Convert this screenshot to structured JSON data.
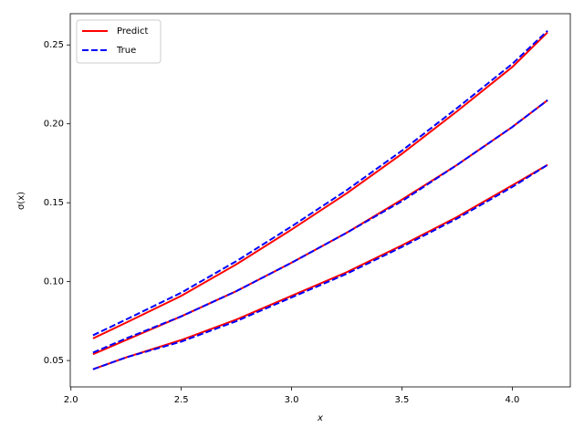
{
  "chart_data": {
    "type": "line",
    "x_label": "x",
    "y_label": "σ(x)",
    "x": [
      2.1,
      2.25,
      2.5,
      2.75,
      3.0,
      3.25,
      3.5,
      3.75,
      4.0,
      4.16
    ],
    "series": [
      {
        "name": "Predict",
        "color": "#ff0000",
        "dash": "solid",
        "curves": [
          [
            0.064,
            0.074,
            0.091,
            0.111,
            0.133,
            0.156,
            0.181,
            0.208,
            0.236,
            0.258
          ],
          [
            0.054,
            0.063,
            0.078,
            0.094,
            0.112,
            0.131,
            0.152,
            0.174,
            0.198,
            0.215
          ],
          [
            0.0445,
            0.052,
            0.063,
            0.076,
            0.091,
            0.106,
            0.123,
            0.141,
            0.161,
            0.174
          ]
        ]
      },
      {
        "name": "True",
        "color": "#0000ff",
        "dash": "dashed",
        "curves": [
          [
            0.066,
            0.076,
            0.093,
            0.113,
            0.135,
            0.158,
            0.183,
            0.21,
            0.238,
            0.259
          ],
          [
            0.055,
            0.064,
            0.078,
            0.094,
            0.112,
            0.131,
            0.151,
            0.174,
            0.198,
            0.215
          ],
          [
            0.0445,
            0.052,
            0.062,
            0.075,
            0.09,
            0.105,
            0.122,
            0.14,
            0.16,
            0.174
          ]
        ]
      }
    ],
    "xlim": [
      1.997,
      4.263
    ],
    "ylim": [
      0.0333,
      0.2698
    ],
    "xticks": [
      {
        "value": 2,
        "label": "2.0"
      },
      2.5,
      {
        "value": 3,
        "label": "3.0"
      },
      3.5,
      {
        "value": 4,
        "label": "4.0"
      }
    ],
    "yticks": [
      0.05,
      {
        "value": 0.1,
        "label": "0.10"
      },
      0.15,
      {
        "value": 0.2,
        "label": "0.20"
      },
      0.25
    ],
    "grid": false,
    "legend": "upper-left"
  }
}
